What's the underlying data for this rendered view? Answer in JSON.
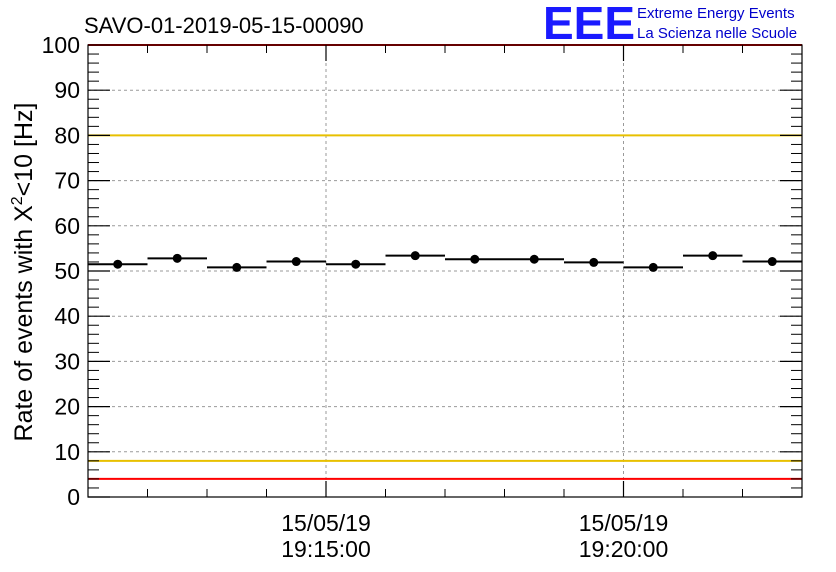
{
  "chart_data": {
    "type": "scatter",
    "title": "SAVO-01-2019-05-15-00090",
    "ylabel": "Rate of events with X",
    "ylabel_sup": "2",
    "ylabel_tail": "<10 [Hz]",
    "xlabel": "",
    "ylim": [
      0,
      100
    ],
    "yticks": [
      "0",
      "10",
      "20",
      "30",
      "40",
      "50",
      "60",
      "70",
      "80",
      "90",
      "100"
    ],
    "xlim_minutes": [
      -4.0,
      8.0
    ],
    "xticks": [
      {
        "minute": 0.0,
        "date": "15/05/19",
        "time": "19:15:00"
      },
      {
        "minute": 5.0,
        "date": "15/05/19",
        "time": "19:20:00"
      }
    ],
    "grid": true,
    "series": [
      {
        "name": "rate",
        "points": [
          {
            "x": -3.5,
            "y": 51.5
          },
          {
            "x": -2.5,
            "y": 52.8
          },
          {
            "x": -1.5,
            "y": 50.8
          },
          {
            "x": -0.5,
            "y": 52.1
          },
          {
            "x": 0.5,
            "y": 51.5
          },
          {
            "x": 1.5,
            "y": 53.4
          },
          {
            "x": 2.5,
            "y": 52.6
          },
          {
            "x": 3.5,
            "y": 52.6
          },
          {
            "x": 4.5,
            "y": 51.9
          },
          {
            "x": 5.5,
            "y": 50.8
          },
          {
            "x": 6.5,
            "y": 53.4
          },
          {
            "x": 7.5,
            "y": 52.1
          }
        ],
        "bin_width_minutes": 1.0,
        "color": "#000000"
      }
    ],
    "reference_lines": [
      {
        "name": "red-upper",
        "y": 100,
        "color": "#ff0000"
      },
      {
        "name": "yellow-upper",
        "y": 80,
        "color": "#e8c000"
      },
      {
        "name": "yellow-lower",
        "y": 8,
        "color": "#e8c000"
      },
      {
        "name": "red-lower",
        "y": 4,
        "color": "#ff0000"
      }
    ]
  },
  "logo": {
    "mark": "EEE",
    "line1": "Extreme Energy Events",
    "line2": "La Scienza nelle Scuole",
    "color": "#0000cc"
  }
}
